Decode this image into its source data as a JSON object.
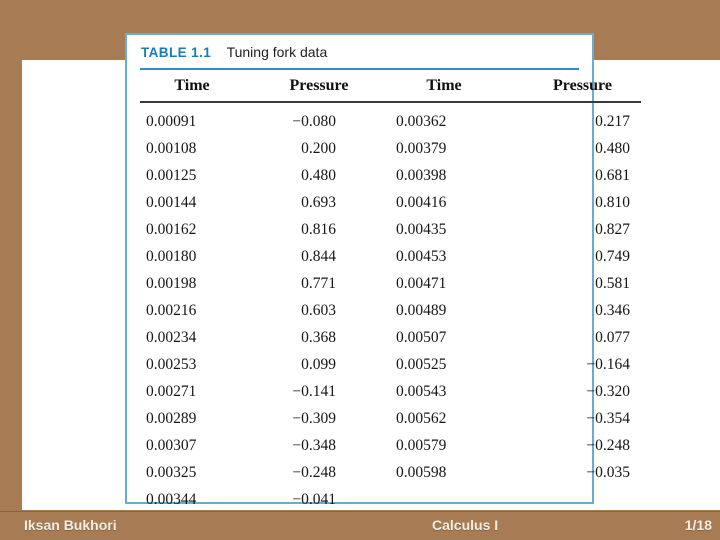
{
  "slide": {
    "background_color": "#a77c55",
    "content_background": "#ffffff"
  },
  "table": {
    "label": "TABLE 1.1",
    "title": "Tuning fork data",
    "accent_color": "#1b7ab8",
    "title_rule_color": "#2e8fc0",
    "header_rule_color": "#3a3a3a",
    "border_color": "#6cabd0",
    "columns": [
      "Time",
      "Pressure",
      "Time",
      "Pressure"
    ],
    "rows": [
      [
        "0.00091",
        "−0.080",
        "0.00362",
        "0.217"
      ],
      [
        "0.00108",
        "0.200",
        "0.00379",
        "0.480"
      ],
      [
        "0.00125",
        "0.480",
        "0.00398",
        "0.681"
      ],
      [
        "0.00144",
        "0.693",
        "0.00416",
        "0.810"
      ],
      [
        "0.00162",
        "0.816",
        "0.00435",
        "0.827"
      ],
      [
        "0.00180",
        "0.844",
        "0.00453",
        "0.749"
      ],
      [
        "0.00198",
        "0.771",
        "0.00471",
        "0.581"
      ],
      [
        "0.00216",
        "0.603",
        "0.00489",
        "0.346"
      ],
      [
        "0.00234",
        "0.368",
        "0.00507",
        "0.077"
      ],
      [
        "0.00253",
        "0.099",
        "0.00525",
        "−0.164"
      ],
      [
        "0.00271",
        "−0.141",
        "0.00543",
        "−0.320"
      ],
      [
        "0.00289",
        "−0.309",
        "0.00562",
        "−0.354"
      ],
      [
        "0.00307",
        "−0.348",
        "0.00579",
        "−0.248"
      ],
      [
        "0.00325",
        "−0.248",
        "0.00598",
        "−0.035"
      ],
      [
        "0.00344",
        "−0.041",
        "",
        ""
      ]
    ]
  },
  "footer": {
    "author": "Iksan Bukhori",
    "course_title": "Calculus I",
    "page_number": "1/18",
    "text_color": "#f3eee2"
  }
}
